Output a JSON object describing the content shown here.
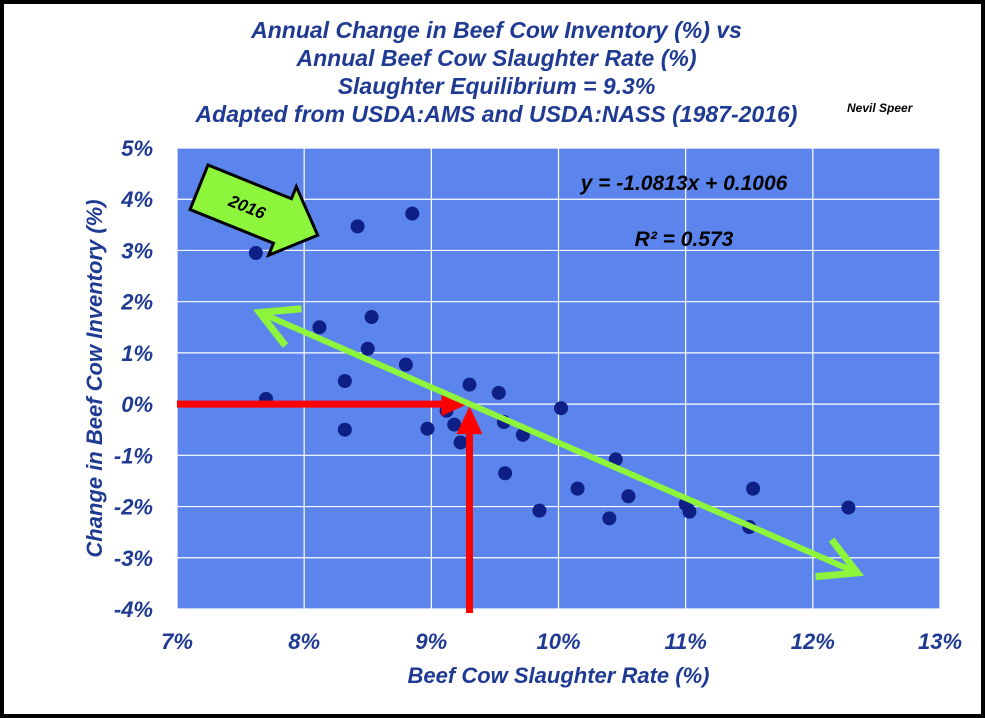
{
  "chart_data": {
    "type": "scatter",
    "title_lines": [
      "Annual Change in Beef Cow Inventory (%) vs",
      "Annual Beef Cow Slaughter Rate (%)",
      "Slaughter Equilibrium = 9.3%",
      "Adapted from USDA:AMS and USDA:NASS (1987-2016)"
    ],
    "credit": "Nevil Speer",
    "xlabel": "Beef Cow Slaughter Rate (%)",
    "ylabel": "Change in Beef Cow Inventory (%)",
    "xlim": [
      0.07,
      0.13
    ],
    "ylim": [
      -0.04,
      0.05
    ],
    "x_ticks": [
      0.07,
      0.08,
      0.09,
      0.1,
      0.11,
      0.12,
      0.13
    ],
    "x_tick_labels": [
      "7%",
      "8%",
      "9%",
      "10%",
      "11%",
      "12%",
      "13%"
    ],
    "y_ticks": [
      0.05,
      0.04,
      0.03,
      0.02,
      0.01,
      0.0,
      -0.01,
      -0.02,
      -0.03,
      -0.04
    ],
    "y_tick_labels": [
      "5%",
      "4%",
      "3%",
      "2%",
      "1%",
      "0%",
      "-1%",
      "-2%",
      "-3%",
      "-4%"
    ],
    "grid": true,
    "plot_background": "#5b84ec",
    "marker_color": "#0e1f86",
    "text_color": "#1f3a93",
    "points": [
      {
        "x": 0.0762,
        "y": 0.0295
      },
      {
        "x": 0.077,
        "y": 0.001
      },
      {
        "x": 0.0812,
        "y": 0.015
      },
      {
        "x": 0.0832,
        "y": 0.0045
      },
      {
        "x": 0.0832,
        "y": -0.005
      },
      {
        "x": 0.0842,
        "y": 0.0347
      },
      {
        "x": 0.085,
        "y": 0.0108
      },
      {
        "x": 0.0853,
        "y": 0.017
      },
      {
        "x": 0.088,
        "y": 0.0077
      },
      {
        "x": 0.0885,
        "y": 0.0372
      },
      {
        "x": 0.0897,
        "y": -0.0048
      },
      {
        "x": 0.0912,
        "y": -0.0013
      },
      {
        "x": 0.0918,
        "y": -0.004
      },
      {
        "x": 0.0923,
        "y": -0.0075
      },
      {
        "x": 0.093,
        "y": 0.0038
      },
      {
        "x": 0.0953,
        "y": 0.0022
      },
      {
        "x": 0.0957,
        "y": -0.0035
      },
      {
        "x": 0.0958,
        "y": -0.0135
      },
      {
        "x": 0.0972,
        "y": -0.006
      },
      {
        "x": 0.0985,
        "y": -0.0208
      },
      {
        "x": 0.1002,
        "y": -0.0008
      },
      {
        "x": 0.1015,
        "y": -0.0165
      },
      {
        "x": 0.104,
        "y": -0.0223
      },
      {
        "x": 0.1045,
        "y": -0.0108
      },
      {
        "x": 0.1055,
        "y": -0.018
      },
      {
        "x": 0.11,
        "y": -0.0195
      },
      {
        "x": 0.1103,
        "y": -0.021
      },
      {
        "x": 0.115,
        "y": -0.024
      },
      {
        "x": 0.1153,
        "y": -0.0165
      },
      {
        "x": 0.1228,
        "y": -0.0202
      }
    ],
    "trendline": {
      "equation": "y = -1.0813x + 0.1006",
      "r_squared": "R² = 0.573",
      "slope": -1.0813,
      "intercept": 0.1006,
      "x_range": [
        0.0765,
        0.1235
      ],
      "color": "#8cf53c"
    },
    "equilibrium": {
      "x": 0.093,
      "y": 0.0,
      "color": "#ff0000"
    },
    "annotation": {
      "text": "2016",
      "color": "#8cf53c"
    }
  }
}
